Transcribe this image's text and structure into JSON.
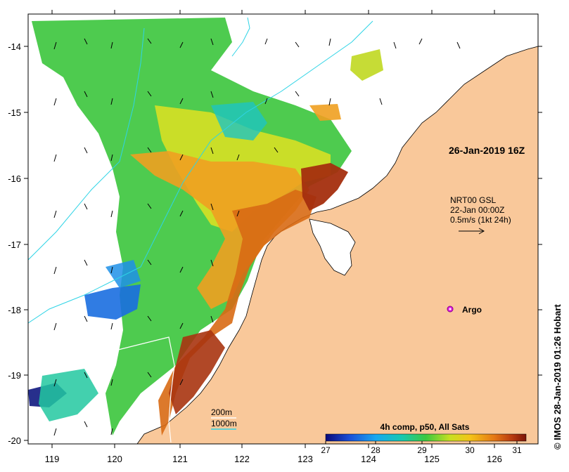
{
  "timestamp": "26-Jan-2019 16Z",
  "velocity_legend": {
    "line1": "NRT00 GSL",
    "line2": "22-Jan 00:00Z",
    "line3": "0.5m/s (1kt 24h)"
  },
  "argo_label": "Argo",
  "colorbar": {
    "title": "4h comp, p50, All Sats",
    "ticks": [
      "27",
      "28",
      "29",
      "30",
      "31"
    ]
  },
  "isobaths": {
    "shallow": "200m",
    "deep": "1000m"
  },
  "credit": "© IMOS 28-Jan-2019 01:26 Hobart",
  "axes": {
    "lon_ticks": [
      "119",
      "120",
      "121",
      "122",
      "123",
      "124",
      "125",
      "126"
    ],
    "lat_ticks": [
      "-14",
      "-15",
      "-16",
      "-17",
      "-18",
      "-19",
      "-20"
    ]
  },
  "colors": {
    "land": "#f9c89a",
    "isobath_200": "#2fd4e6",
    "isobath_1000": "#ffffff",
    "argo": "#e020e0"
  }
}
